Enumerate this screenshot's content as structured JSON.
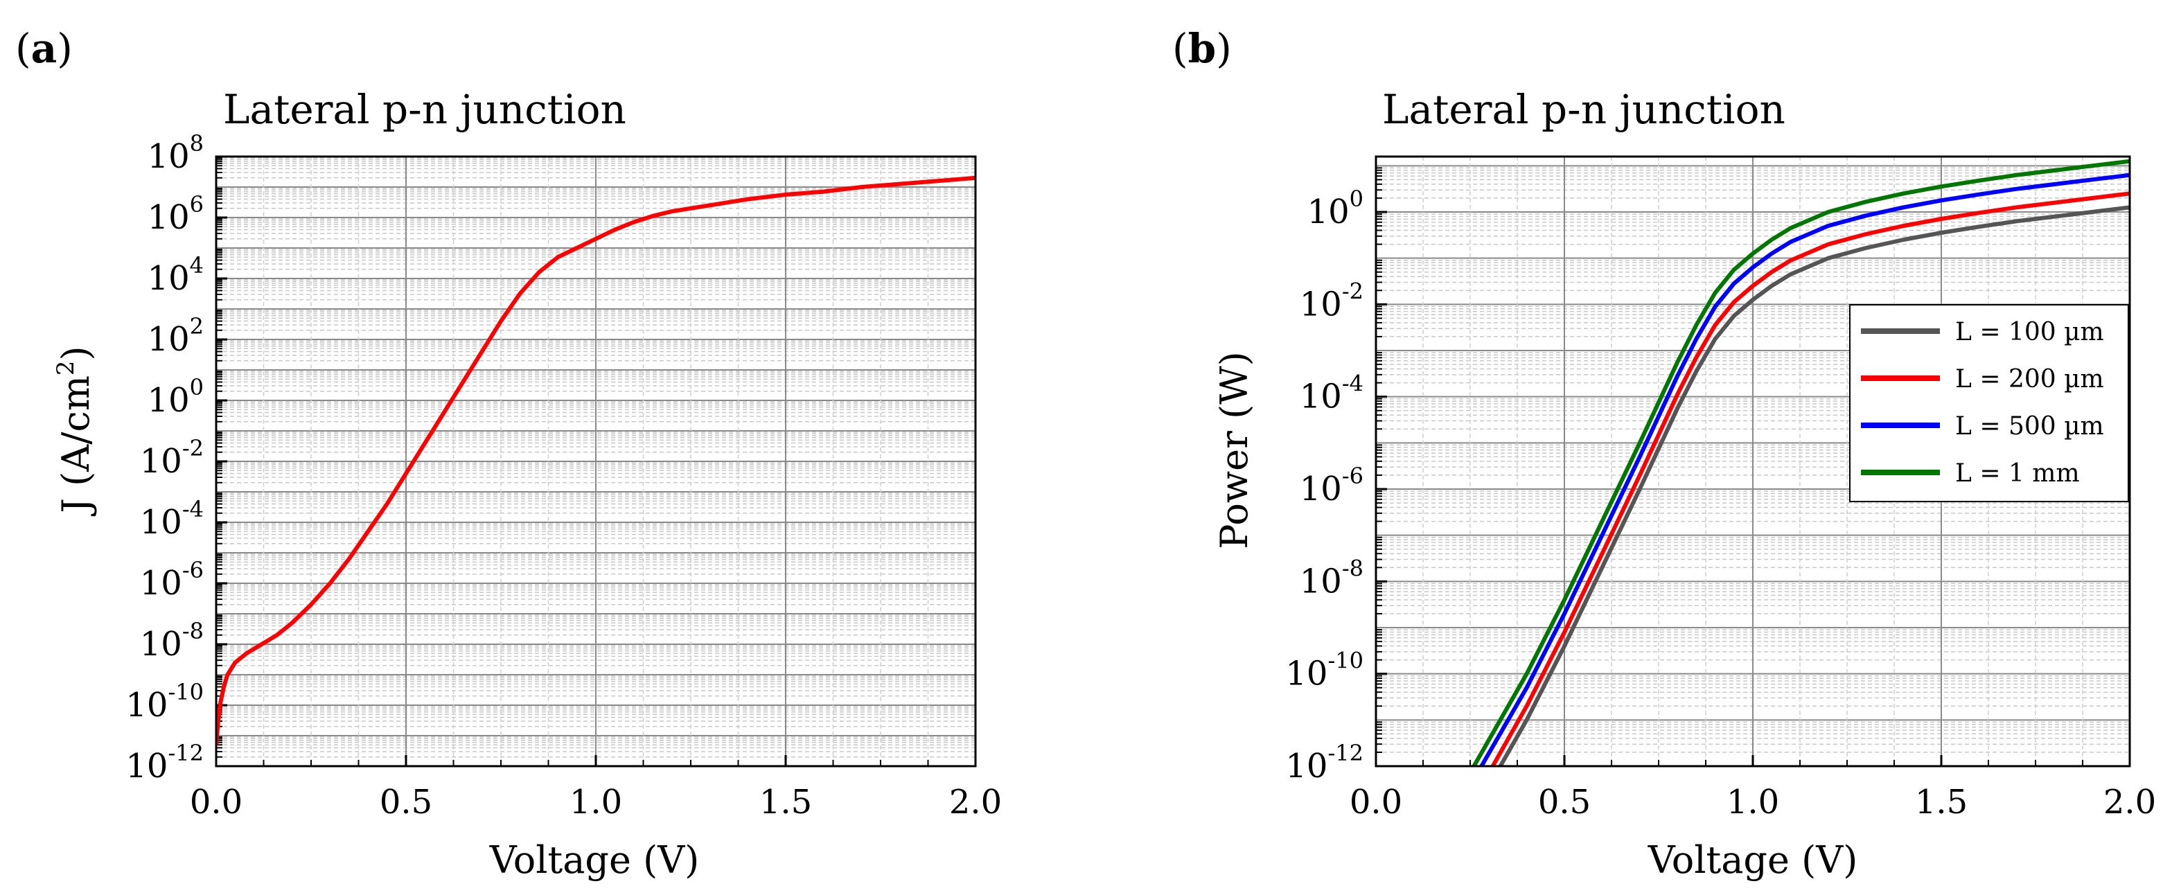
{
  "figure": {
    "panel_labels": [
      {
        "open": "(",
        "letter": "a",
        "close": ")"
      },
      {
        "open": "(",
        "letter": "b",
        "close": ")"
      }
    ]
  },
  "chart_data": [
    {
      "type": "line",
      "panel": "a",
      "title": "Lateral p-n junction",
      "xlabel": "Voltage (V)",
      "ylabel": "J (A/cm²)",
      "ylabel_parts": {
        "pre": "J (A/cm",
        "sup": "2",
        "post": ")"
      },
      "xscale": "linear",
      "yscale": "log",
      "xlim": [
        0.0,
        2.0
      ],
      "ylim_log10": [
        -12,
        8
      ],
      "xticks": [
        "0.0",
        "0.5",
        "1.0",
        "1.5",
        "2.0"
      ],
      "yticks": [
        {
          "base": "10",
          "exp": "-12"
        },
        {
          "base": "10",
          "exp": "-10"
        },
        {
          "base": "10",
          "exp": "-8"
        },
        {
          "base": "10",
          "exp": "-6"
        },
        {
          "base": "10",
          "exp": "-4"
        },
        {
          "base": "10",
          "exp": "-2"
        },
        {
          "base": "10",
          "exp": "0"
        },
        {
          "base": "10",
          "exp": "2"
        },
        {
          "base": "10",
          "exp": "4"
        },
        {
          "base": "10",
          "exp": "6"
        },
        {
          "base": "10",
          "exp": "8"
        }
      ],
      "grid": true,
      "series": [
        {
          "name": "J",
          "color": "#ff0000",
          "x": [
            0.0,
            0.005,
            0.01,
            0.02,
            0.03,
            0.05,
            0.08,
            0.12,
            0.16,
            0.2,
            0.25,
            0.3,
            0.35,
            0.4,
            0.45,
            0.5,
            0.55,
            0.6,
            0.65,
            0.7,
            0.75,
            0.8,
            0.85,
            0.9,
            0.95,
            1.0,
            1.05,
            1.1,
            1.15,
            1.2,
            1.3,
            1.4,
            1.5,
            1.6,
            1.7,
            1.8,
            1.9,
            2.0
          ],
          "log10_y": [
            -11.3,
            -10.6,
            -10.0,
            -9.4,
            -9.0,
            -8.6,
            -8.3,
            -8.0,
            -7.7,
            -7.3,
            -6.7,
            -6.0,
            -5.2,
            -4.3,
            -3.4,
            -2.4,
            -1.4,
            -0.4,
            0.6,
            1.6,
            2.6,
            3.5,
            4.2,
            4.7,
            5.0,
            5.3,
            5.6,
            5.85,
            6.05,
            6.2,
            6.4,
            6.6,
            6.75,
            6.85,
            7.0,
            7.1,
            7.2,
            7.3
          ]
        }
      ]
    },
    {
      "type": "line",
      "panel": "b",
      "title": "Lateral p-n junction",
      "xlabel": "Voltage (V)",
      "ylabel": "Power (W)",
      "xscale": "linear",
      "yscale": "log",
      "xlim": [
        0.0,
        2.0
      ],
      "ylim_log10": [
        -12,
        1.2
      ],
      "xticks": [
        "0.0",
        "0.5",
        "1.0",
        "1.5",
        "2.0"
      ],
      "yticks": [
        {
          "base": "10",
          "exp": "-12"
        },
        {
          "base": "10",
          "exp": "-10"
        },
        {
          "base": "10",
          "exp": "-8"
        },
        {
          "base": "10",
          "exp": "-6"
        },
        {
          "base": "10",
          "exp": "-4"
        },
        {
          "base": "10",
          "exp": "-2"
        },
        {
          "base": "10",
          "exp": "0"
        }
      ],
      "grid": true,
      "legend": {
        "placement": "center-right"
      },
      "series": [
        {
          "name": "L = 100 µm",
          "color": "#555555",
          "x": [
            0.33,
            0.4,
            0.5,
            0.6,
            0.7,
            0.8,
            0.85,
            0.9,
            0.95,
            1.0,
            1.05,
            1.1,
            1.2,
            1.3,
            1.4,
            1.5,
            1.6,
            1.7,
            1.8,
            1.9,
            2.0
          ],
          "log10_y": [
            -12.0,
            -11.0,
            -9.4,
            -7.7,
            -6.0,
            -4.25,
            -3.45,
            -2.75,
            -2.25,
            -1.9,
            -1.6,
            -1.35,
            -1.0,
            -0.78,
            -0.6,
            -0.45,
            -0.32,
            -0.2,
            -0.1,
            0.0,
            0.1
          ]
        },
        {
          "name": "L = 200 µm",
          "color": "#ff0000",
          "x": [
            0.31,
            0.4,
            0.5,
            0.6,
            0.7,
            0.8,
            0.85,
            0.9,
            0.95,
            1.0,
            1.05,
            1.1,
            1.2,
            1.3,
            1.4,
            1.5,
            1.6,
            1.7,
            1.8,
            1.9,
            2.0
          ],
          "log10_y": [
            -12.0,
            -10.7,
            -9.1,
            -7.4,
            -5.7,
            -3.95,
            -3.15,
            -2.45,
            -1.95,
            -1.6,
            -1.3,
            -1.05,
            -0.7,
            -0.48,
            -0.3,
            -0.15,
            -0.02,
            0.1,
            0.2,
            0.3,
            0.4
          ]
        },
        {
          "name": "L = 500 µm",
          "color": "#0000ff",
          "x": [
            0.28,
            0.4,
            0.5,
            0.6,
            0.7,
            0.8,
            0.85,
            0.9,
            0.95,
            1.0,
            1.05,
            1.1,
            1.2,
            1.3,
            1.4,
            1.5,
            1.6,
            1.7,
            1.8,
            1.9,
            2.0
          ],
          "log10_y": [
            -12.0,
            -10.3,
            -8.7,
            -7.0,
            -5.3,
            -3.55,
            -2.75,
            -2.05,
            -1.55,
            -1.2,
            -0.9,
            -0.65,
            -0.3,
            -0.08,
            0.1,
            0.25,
            0.38,
            0.5,
            0.6,
            0.7,
            0.8
          ]
        },
        {
          "name": "L = 1 mm",
          "color": "#007700",
          "x": [
            0.26,
            0.4,
            0.5,
            0.6,
            0.7,
            0.8,
            0.85,
            0.9,
            0.95,
            1.0,
            1.05,
            1.1,
            1.2,
            1.3,
            1.4,
            1.5,
            1.6,
            1.7,
            1.8,
            1.9,
            2.0
          ],
          "log10_y": [
            -12.0,
            -10.0,
            -8.4,
            -6.7,
            -5.0,
            -3.25,
            -2.45,
            -1.75,
            -1.25,
            -0.9,
            -0.6,
            -0.35,
            0.0,
            0.22,
            0.4,
            0.55,
            0.68,
            0.8,
            0.9,
            1.0,
            1.1
          ]
        }
      ]
    }
  ]
}
